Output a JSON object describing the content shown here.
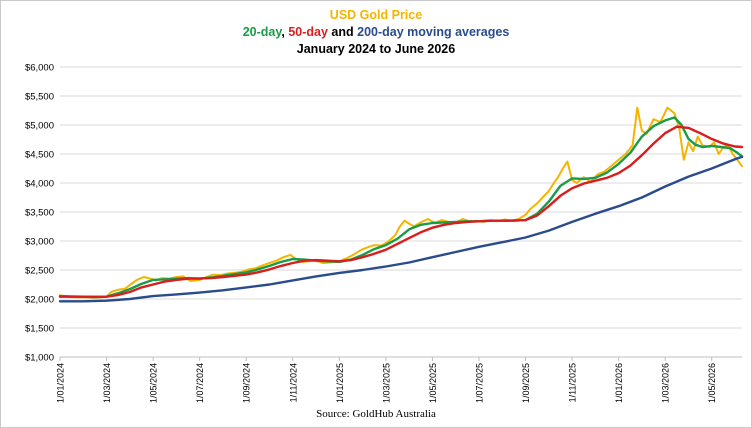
{
  "chart_data": {
    "type": "line",
    "title_parts": [
      {
        "text": "USD Gold Price",
        "color": "#f4b400"
      }
    ],
    "subtitle_parts": [
      {
        "text": "20-day",
        "color": "#1a9c46"
      },
      {
        "text": ", ",
        "color": "#000000"
      },
      {
        "text": "50-day",
        "color": "#d81e1e"
      },
      {
        "text": " and ",
        "color": "#000000"
      },
      {
        "text": "200-day moving averages",
        "color": "#2a4b8d"
      }
    ],
    "period": "January 2024 to June 2026",
    "source": "Source: GoldHub Australia",
    "ylim": [
      1000,
      6000
    ],
    "yticks": [
      1000,
      1500,
      2000,
      2500,
      3000,
      3500,
      4000,
      4500,
      5000,
      5500,
      6000
    ],
    "ytick_labels": [
      "$1,000",
      "$1,500",
      "$2,000",
      "$2,500",
      "$3,000",
      "$3,500",
      "$4,000",
      "$4,500",
      "$5,000",
      "$5,500",
      "$6,000"
    ],
    "xlim": [
      0,
      29.3
    ],
    "xticks": [
      0,
      2,
      4,
      6,
      8,
      10,
      12,
      14,
      16,
      18,
      20,
      22,
      24,
      26,
      28
    ],
    "xtick_labels": [
      "1/01/2024",
      "1/03/2024",
      "1/05/2024",
      "1/07/2024",
      "1/09/2024",
      "1/11/2024",
      "1/01/2025",
      "1/03/2025",
      "1/05/2025",
      "1/07/2025",
      "1/09/2025",
      "1/11/2025",
      "1/01/2026",
      "1/03/2026",
      "1/05/2026"
    ],
    "grid": "horizontal",
    "series": [
      {
        "key": "price",
        "color": "#f4b400",
        "width": 2,
        "points": [
          [
            0,
            2063
          ],
          [
            0.3,
            2040
          ],
          [
            0.6,
            2030
          ],
          [
            1.0,
            2030
          ],
          [
            1.4,
            2025
          ],
          [
            1.8,
            2030
          ],
          [
            2.0,
            2040
          ],
          [
            2.2,
            2120
          ],
          [
            2.5,
            2160
          ],
          [
            2.8,
            2180
          ],
          [
            3.0,
            2240
          ],
          [
            3.3,
            2330
          ],
          [
            3.6,
            2380
          ],
          [
            3.9,
            2350
          ],
          [
            4.1,
            2320
          ],
          [
            4.4,
            2360
          ],
          [
            4.7,
            2350
          ],
          [
            5.0,
            2380
          ],
          [
            5.3,
            2390
          ],
          [
            5.6,
            2310
          ],
          [
            6.0,
            2330
          ],
          [
            6.3,
            2380
          ],
          [
            6.6,
            2420
          ],
          [
            6.9,
            2410
          ],
          [
            7.2,
            2440
          ],
          [
            7.5,
            2450
          ],
          [
            7.8,
            2470
          ],
          [
            8.1,
            2510
          ],
          [
            8.4,
            2530
          ],
          [
            8.7,
            2580
          ],
          [
            9.0,
            2620
          ],
          [
            9.3,
            2660
          ],
          [
            9.6,
            2720
          ],
          [
            9.9,
            2760
          ],
          [
            10.1,
            2700
          ],
          [
            10.4,
            2640
          ],
          [
            10.7,
            2650
          ],
          [
            11.0,
            2660
          ],
          [
            11.3,
            2620
          ],
          [
            11.6,
            2630
          ],
          [
            12.0,
            2650
          ],
          [
            12.3,
            2700
          ],
          [
            12.6,
            2760
          ],
          [
            12.9,
            2840
          ],
          [
            13.2,
            2890
          ],
          [
            13.5,
            2930
          ],
          [
            13.8,
            2920
          ],
          [
            14.1,
            2990
          ],
          [
            14.4,
            3100
          ],
          [
            14.6,
            3250
          ],
          [
            14.8,
            3350
          ],
          [
            15.0,
            3300
          ],
          [
            15.2,
            3250
          ],
          [
            15.5,
            3320
          ],
          [
            15.8,
            3380
          ],
          [
            16.1,
            3310
          ],
          [
            16.4,
            3360
          ],
          [
            16.7,
            3330
          ],
          [
            17.0,
            3320
          ],
          [
            17.3,
            3380
          ],
          [
            17.6,
            3340
          ],
          [
            17.9,
            3350
          ],
          [
            18.2,
            3330
          ],
          [
            18.5,
            3360
          ],
          [
            18.8,
            3340
          ],
          [
            19.1,
            3370
          ],
          [
            19.4,
            3350
          ],
          [
            19.7,
            3380
          ],
          [
            20.0,
            3450
          ],
          [
            20.2,
            3550
          ],
          [
            20.5,
            3650
          ],
          [
            20.8,
            3780
          ],
          [
            21.0,
            3860
          ],
          [
            21.2,
            3990
          ],
          [
            21.4,
            4100
          ],
          [
            21.6,
            4250
          ],
          [
            21.8,
            4370
          ],
          [
            22.0,
            4050
          ],
          [
            22.2,
            4000
          ],
          [
            22.5,
            4100
          ],
          [
            22.8,
            4020
          ],
          [
            23.1,
            4150
          ],
          [
            23.4,
            4200
          ],
          [
            23.7,
            4300
          ],
          [
            24.0,
            4400
          ],
          [
            24.3,
            4500
          ],
          [
            24.6,
            4650
          ],
          [
            24.8,
            5300
          ],
          [
            25.0,
            4900
          ],
          [
            25.2,
            4850
          ],
          [
            25.5,
            5100
          ],
          [
            25.8,
            5050
          ],
          [
            26.1,
            5300
          ],
          [
            26.4,
            5200
          ],
          [
            26.6,
            4950
          ],
          [
            26.8,
            4400
          ],
          [
            27.0,
            4700
          ],
          [
            27.2,
            4550
          ],
          [
            27.4,
            4800
          ],
          [
            27.6,
            4650
          ],
          [
            27.9,
            4620
          ],
          [
            28.1,
            4700
          ],
          [
            28.3,
            4500
          ],
          [
            28.5,
            4620
          ],
          [
            28.7,
            4650
          ],
          [
            28.9,
            4500
          ],
          [
            29.1,
            4400
          ],
          [
            29.3,
            4290
          ]
        ]
      },
      {
        "key": "ma20",
        "color": "#1a9c46",
        "width": 2.4,
        "points": [
          [
            0,
            2050
          ],
          [
            0.5,
            2045
          ],
          [
            1.0,
            2040
          ],
          [
            1.5,
            2035
          ],
          [
            2.0,
            2040
          ],
          [
            2.5,
            2100
          ],
          [
            3.0,
            2170
          ],
          [
            3.5,
            2260
          ],
          [
            4.0,
            2330
          ],
          [
            4.5,
            2340
          ],
          [
            5.0,
            2350
          ],
          [
            5.5,
            2360
          ],
          [
            6.0,
            2350
          ],
          [
            6.5,
            2370
          ],
          [
            7.0,
            2400
          ],
          [
            7.5,
            2430
          ],
          [
            8.0,
            2460
          ],
          [
            8.5,
            2510
          ],
          [
            9.0,
            2570
          ],
          [
            9.5,
            2640
          ],
          [
            10.0,
            2690
          ],
          [
            10.5,
            2680
          ],
          [
            11.0,
            2660
          ],
          [
            11.5,
            2650
          ],
          [
            12.0,
            2640
          ],
          [
            12.5,
            2680
          ],
          [
            13.0,
            2760
          ],
          [
            13.5,
            2860
          ],
          [
            14.0,
            2930
          ],
          [
            14.5,
            3040
          ],
          [
            15.0,
            3200
          ],
          [
            15.5,
            3280
          ],
          [
            16.0,
            3310
          ],
          [
            16.5,
            3320
          ],
          [
            17.0,
            3330
          ],
          [
            17.5,
            3340
          ],
          [
            18.0,
            3340
          ],
          [
            18.5,
            3350
          ],
          [
            19.0,
            3350
          ],
          [
            19.5,
            3355
          ],
          [
            20.0,
            3360
          ],
          [
            20.5,
            3470
          ],
          [
            21.0,
            3680
          ],
          [
            21.5,
            3950
          ],
          [
            22.0,
            4080
          ],
          [
            22.5,
            4070
          ],
          [
            23.0,
            4090
          ],
          [
            23.5,
            4180
          ],
          [
            24.0,
            4330
          ],
          [
            24.5,
            4520
          ],
          [
            25.0,
            4800
          ],
          [
            25.5,
            4980
          ],
          [
            26.0,
            5080
          ],
          [
            26.4,
            5130
          ],
          [
            26.7,
            5000
          ],
          [
            27.0,
            4760
          ],
          [
            27.3,
            4660
          ],
          [
            27.6,
            4620
          ],
          [
            28.0,
            4640
          ],
          [
            28.4,
            4620
          ],
          [
            28.8,
            4600
          ],
          [
            29.1,
            4520
          ],
          [
            29.3,
            4460
          ]
        ]
      },
      {
        "key": "ma50",
        "color": "#d81e1e",
        "width": 2.4,
        "points": [
          [
            0,
            2040
          ],
          [
            0.5,
            2040
          ],
          [
            1.0,
            2040
          ],
          [
            1.5,
            2038
          ],
          [
            2.0,
            2040
          ],
          [
            2.5,
            2070
          ],
          [
            3.0,
            2120
          ],
          [
            3.5,
            2200
          ],
          [
            4.0,
            2250
          ],
          [
            4.5,
            2300
          ],
          [
            5.0,
            2330
          ],
          [
            5.5,
            2350
          ],
          [
            6.0,
            2355
          ],
          [
            6.5,
            2360
          ],
          [
            7.0,
            2380
          ],
          [
            7.5,
            2400
          ],
          [
            8.0,
            2420
          ],
          [
            8.5,
            2460
          ],
          [
            9.0,
            2510
          ],
          [
            9.5,
            2570
          ],
          [
            10.0,
            2620
          ],
          [
            10.5,
            2660
          ],
          [
            11.0,
            2670
          ],
          [
            11.5,
            2660
          ],
          [
            12.0,
            2650
          ],
          [
            12.5,
            2670
          ],
          [
            13.0,
            2720
          ],
          [
            13.5,
            2780
          ],
          [
            14.0,
            2850
          ],
          [
            14.5,
            2950
          ],
          [
            15.0,
            3050
          ],
          [
            15.5,
            3150
          ],
          [
            16.0,
            3230
          ],
          [
            16.5,
            3280
          ],
          [
            17.0,
            3310
          ],
          [
            17.5,
            3330
          ],
          [
            18.0,
            3340
          ],
          [
            18.5,
            3350
          ],
          [
            19.0,
            3350
          ],
          [
            19.5,
            3350
          ],
          [
            20.0,
            3360
          ],
          [
            20.5,
            3440
          ],
          [
            21.0,
            3600
          ],
          [
            21.5,
            3780
          ],
          [
            22.0,
            3910
          ],
          [
            22.5,
            3990
          ],
          [
            23.0,
            4040
          ],
          [
            23.5,
            4090
          ],
          [
            24.0,
            4170
          ],
          [
            24.5,
            4300
          ],
          [
            25.0,
            4480
          ],
          [
            25.5,
            4680
          ],
          [
            26.0,
            4860
          ],
          [
            26.5,
            4970
          ],
          [
            27.0,
            4950
          ],
          [
            27.5,
            4860
          ],
          [
            28.0,
            4760
          ],
          [
            28.5,
            4680
          ],
          [
            29.0,
            4630
          ],
          [
            29.3,
            4620
          ]
        ]
      },
      {
        "key": "ma200",
        "color": "#2a4b8d",
        "width": 2.4,
        "points": [
          [
            0,
            1960
          ],
          [
            1.0,
            1960
          ],
          [
            2.0,
            1970
          ],
          [
            3.0,
            2000
          ],
          [
            4.0,
            2050
          ],
          [
            5.0,
            2080
          ],
          [
            6.0,
            2110
          ],
          [
            7.0,
            2150
          ],
          [
            8.0,
            2200
          ],
          [
            9.0,
            2250
          ],
          [
            10.0,
            2320
          ],
          [
            11.0,
            2390
          ],
          [
            12.0,
            2450
          ],
          [
            13.0,
            2500
          ],
          [
            14.0,
            2560
          ],
          [
            15.0,
            2630
          ],
          [
            16.0,
            2720
          ],
          [
            17.0,
            2810
          ],
          [
            18.0,
            2900
          ],
          [
            19.0,
            2980
          ],
          [
            20.0,
            3060
          ],
          [
            21.0,
            3180
          ],
          [
            22.0,
            3330
          ],
          [
            23.0,
            3470
          ],
          [
            24.0,
            3600
          ],
          [
            25.0,
            3750
          ],
          [
            26.0,
            3940
          ],
          [
            27.0,
            4110
          ],
          [
            28.0,
            4250
          ],
          [
            29.0,
            4410
          ],
          [
            29.3,
            4450
          ]
        ]
      }
    ]
  }
}
